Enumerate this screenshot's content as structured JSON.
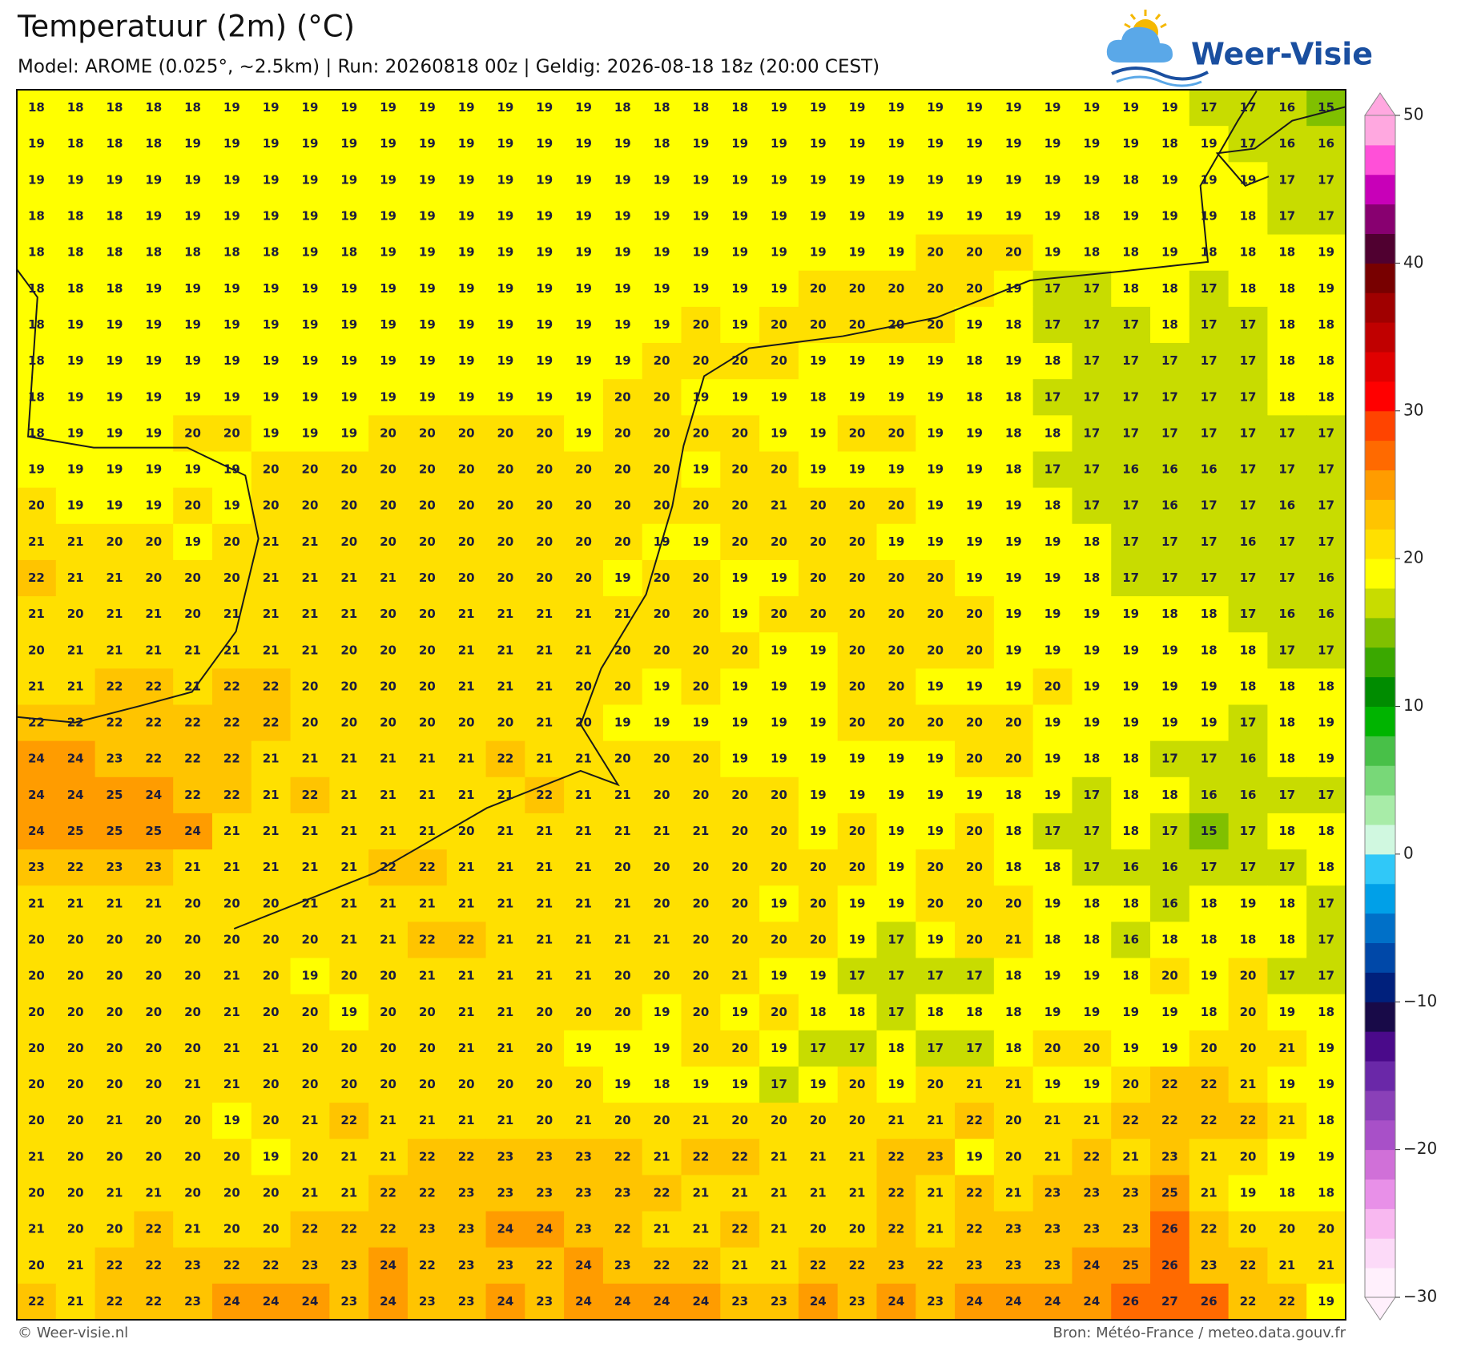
{
  "header": {
    "title": "Temperatuur (2m) (°C)",
    "subtitle": "Model: AROME (0.025°, ~2.5km)  |  Run: 20260818 00z  |  Geldig: 2026-08-18 18z (20:00 CEST)",
    "logo": "Weer-Visie"
  },
  "map": {
    "rows": [
      [
        18,
        18,
        18,
        18,
        18,
        19,
        19,
        19,
        19,
        19,
        19,
        19,
        19,
        19,
        19,
        18,
        18,
        18,
        18,
        19,
        19,
        19,
        19,
        19,
        19,
        19,
        19,
        19,
        19,
        19,
        17,
        17,
        16,
        15
      ],
      [
        19,
        18,
        18,
        18,
        19,
        19,
        19,
        19,
        19,
        19,
        19,
        19,
        19,
        19,
        19,
        19,
        18,
        19,
        19,
        19,
        19,
        19,
        19,
        19,
        19,
        19,
        19,
        19,
        19,
        18,
        19,
        17,
        16,
        16
      ],
      [
        19,
        19,
        19,
        19,
        19,
        19,
        19,
        19,
        19,
        19,
        19,
        19,
        19,
        19,
        19,
        19,
        19,
        19,
        19,
        19,
        19,
        19,
        19,
        19,
        19,
        19,
        19,
        19,
        18,
        19,
        19,
        19,
        17,
        17
      ],
      [
        18,
        18,
        18,
        19,
        19,
        19,
        19,
        19,
        19,
        19,
        19,
        19,
        19,
        19,
        19,
        19,
        19,
        19,
        19,
        19,
        19,
        19,
        19,
        19,
        19,
        19,
        19,
        18,
        19,
        19,
        19,
        18,
        17,
        17
      ],
      [
        18,
        18,
        18,
        18,
        18,
        18,
        18,
        19,
        18,
        19,
        19,
        19,
        19,
        19,
        19,
        19,
        19,
        19,
        19,
        19,
        19,
        19,
        19,
        20,
        20,
        20,
        19,
        18,
        18,
        19,
        18,
        18,
        18,
        19
      ],
      [
        18,
        18,
        18,
        19,
        19,
        19,
        19,
        19,
        19,
        19,
        19,
        19,
        19,
        19,
        19,
        19,
        19,
        19,
        19,
        19,
        20,
        20,
        20,
        20,
        20,
        19,
        17,
        17,
        18,
        18,
        17,
        18,
        18,
        19
      ],
      [
        18,
        19,
        19,
        19,
        19,
        19,
        19,
        19,
        19,
        19,
        19,
        19,
        19,
        19,
        19,
        19,
        19,
        20,
        19,
        20,
        20,
        20,
        20,
        20,
        19,
        18,
        17,
        17,
        17,
        18,
        17,
        17,
        18,
        18
      ],
      [
        18,
        19,
        19,
        19,
        19,
        19,
        19,
        19,
        19,
        19,
        19,
        19,
        19,
        19,
        19,
        19,
        20,
        20,
        20,
        20,
        19,
        19,
        19,
        19,
        18,
        19,
        18,
        17,
        17,
        17,
        17,
        17,
        18,
        18
      ],
      [
        18,
        19,
        19,
        19,
        19,
        19,
        19,
        19,
        19,
        19,
        19,
        19,
        19,
        19,
        19,
        20,
        20,
        19,
        19,
        19,
        18,
        19,
        19,
        19,
        18,
        18,
        17,
        17,
        17,
        17,
        17,
        17,
        18,
        18
      ],
      [
        18,
        19,
        19,
        19,
        20,
        20,
        19,
        19,
        19,
        20,
        20,
        20,
        20,
        20,
        19,
        20,
        20,
        20,
        20,
        19,
        19,
        20,
        20,
        19,
        19,
        18,
        18,
        17,
        17,
        17,
        17,
        17,
        17,
        17
      ],
      [
        19,
        19,
        19,
        19,
        19,
        19,
        20,
        20,
        20,
        20,
        20,
        20,
        20,
        20,
        20,
        20,
        20,
        19,
        20,
        20,
        19,
        19,
        19,
        19,
        19,
        18,
        17,
        17,
        16,
        16,
        16,
        17,
        17,
        17
      ],
      [
        20,
        19,
        19,
        19,
        20,
        19,
        20,
        20,
        20,
        20,
        20,
        20,
        20,
        20,
        20,
        20,
        20,
        20,
        20,
        21,
        20,
        20,
        20,
        19,
        19,
        19,
        18,
        17,
        17,
        16,
        17,
        17,
        16,
        17
      ],
      [
        21,
        21,
        20,
        20,
        19,
        20,
        21,
        21,
        20,
        20,
        20,
        20,
        20,
        20,
        20,
        20,
        19,
        19,
        20,
        20,
        20,
        20,
        19,
        19,
        19,
        19,
        19,
        18,
        17,
        17,
        17,
        16,
        17,
        17
      ],
      [
        22,
        21,
        21,
        20,
        20,
        20,
        21,
        21,
        21,
        21,
        20,
        20,
        20,
        20,
        20,
        19,
        20,
        20,
        19,
        19,
        20,
        20,
        20,
        20,
        19,
        19,
        19,
        18,
        17,
        17,
        17,
        17,
        17,
        16
      ],
      [
        21,
        20,
        21,
        21,
        20,
        21,
        21,
        21,
        21,
        20,
        20,
        21,
        21,
        21,
        21,
        21,
        20,
        20,
        19,
        20,
        20,
        20,
        20,
        20,
        20,
        19,
        19,
        19,
        19,
        18,
        18,
        17,
        16,
        16
      ],
      [
        20,
        21,
        21,
        21,
        21,
        21,
        21,
        21,
        20,
        20,
        20,
        21,
        21,
        21,
        21,
        20,
        20,
        20,
        20,
        19,
        19,
        20,
        20,
        20,
        20,
        19,
        19,
        19,
        19,
        19,
        18,
        18,
        17,
        17
      ],
      [
        21,
        21,
        22,
        22,
        21,
        22,
        22,
        20,
        20,
        20,
        20,
        21,
        21,
        21,
        20,
        20,
        19,
        20,
        19,
        19,
        19,
        20,
        20,
        19,
        19,
        19,
        20,
        19,
        19,
        19,
        19,
        18,
        18,
        18
      ],
      [
        22,
        22,
        22,
        22,
        22,
        22,
        22,
        20,
        20,
        20,
        20,
        20,
        20,
        21,
        20,
        19,
        19,
        19,
        19,
        19,
        19,
        20,
        20,
        20,
        20,
        20,
        19,
        19,
        19,
        19,
        19,
        17,
        18,
        19
      ],
      [
        24,
        24,
        23,
        22,
        22,
        22,
        21,
        21,
        21,
        21,
        21,
        21,
        22,
        21,
        21,
        20,
        20,
        20,
        19,
        19,
        19,
        19,
        19,
        19,
        20,
        20,
        19,
        18,
        18,
        17,
        17,
        16,
        18,
        19
      ],
      [
        24,
        24,
        25,
        24,
        22,
        22,
        21,
        22,
        21,
        21,
        21,
        21,
        21,
        22,
        21,
        21,
        20,
        20,
        20,
        20,
        19,
        19,
        19,
        19,
        19,
        18,
        19,
        17,
        18,
        18,
        16,
        16,
        17,
        17
      ],
      [
        24,
        25,
        25,
        25,
        24,
        21,
        21,
        21,
        21,
        21,
        21,
        20,
        21,
        21,
        21,
        21,
        21,
        21,
        20,
        20,
        19,
        20,
        19,
        19,
        20,
        18,
        17,
        17,
        18,
        17,
        15,
        17,
        18,
        18
      ],
      [
        23,
        22,
        23,
        23,
        21,
        21,
        21,
        21,
        21,
        22,
        22,
        21,
        21,
        21,
        21,
        20,
        20,
        20,
        20,
        20,
        20,
        20,
        19,
        20,
        20,
        18,
        18,
        17,
        16,
        16,
        17,
        17,
        17,
        18
      ],
      [
        21,
        21,
        21,
        21,
        20,
        20,
        20,
        21,
        21,
        21,
        21,
        21,
        21,
        21,
        21,
        21,
        20,
        20,
        20,
        19,
        20,
        19,
        19,
        20,
        20,
        20,
        19,
        18,
        18,
        16,
        18,
        19,
        18,
        17
      ],
      [
        20,
        20,
        20,
        20,
        20,
        20,
        20,
        20,
        21,
        21,
        22,
        22,
        21,
        21,
        21,
        21,
        21,
        20,
        20,
        20,
        20,
        19,
        17,
        19,
        20,
        21,
        18,
        18,
        16,
        18,
        18,
        18,
        18,
        17
      ],
      [
        20,
        20,
        20,
        20,
        20,
        21,
        20,
        19,
        20,
        20,
        21,
        21,
        21,
        21,
        21,
        20,
        20,
        20,
        21,
        19,
        19,
        17,
        17,
        17,
        17,
        18,
        19,
        19,
        18,
        20,
        19,
        20,
        17,
        17
      ],
      [
        20,
        20,
        20,
        20,
        20,
        21,
        20,
        20,
        19,
        20,
        20,
        21,
        21,
        20,
        20,
        20,
        19,
        20,
        19,
        20,
        18,
        18,
        17,
        18,
        18,
        18,
        19,
        19,
        19,
        19,
        18,
        20,
        19,
        18
      ],
      [
        20,
        20,
        20,
        20,
        20,
        21,
        21,
        20,
        20,
        20,
        20,
        21,
        21,
        20,
        19,
        19,
        19,
        20,
        20,
        19,
        17,
        17,
        18,
        17,
        17,
        18,
        20,
        20,
        19,
        19,
        20,
        20,
        21,
        19
      ],
      [
        20,
        20,
        20,
        20,
        21,
        21,
        20,
        20,
        20,
        20,
        20,
        20,
        20,
        20,
        20,
        19,
        18,
        19,
        19,
        17,
        19,
        20,
        19,
        20,
        21,
        21,
        19,
        19,
        20,
        22,
        22,
        21,
        19,
        19
      ],
      [
        20,
        20,
        21,
        20,
        20,
        19,
        20,
        21,
        22,
        21,
        21,
        21,
        21,
        20,
        21,
        20,
        20,
        21,
        20,
        20,
        20,
        20,
        21,
        21,
        22,
        20,
        21,
        21,
        22,
        22,
        22,
        22,
        21,
        18
      ],
      [
        21,
        20,
        20,
        20,
        20,
        20,
        19,
        20,
        21,
        21,
        22,
        22,
        23,
        23,
        23,
        22,
        21,
        22,
        22,
        21,
        21,
        21,
        22,
        23,
        19,
        20,
        21,
        22,
        21,
        23,
        21,
        20,
        19,
        19
      ],
      [
        20,
        20,
        21,
        21,
        20,
        20,
        20,
        21,
        21,
        22,
        22,
        23,
        23,
        23,
        23,
        23,
        22,
        21,
        21,
        21,
        21,
        21,
        22,
        21,
        22,
        21,
        23,
        23,
        23,
        25,
        21,
        19,
        18,
        18
      ],
      [
        21,
        20,
        20,
        22,
        21,
        20,
        20,
        22,
        22,
        22,
        23,
        23,
        24,
        24,
        23,
        22,
        21,
        21,
        22,
        21,
        20,
        20,
        22,
        21,
        22,
        23,
        23,
        23,
        23,
        26,
        22,
        20,
        20,
        20
      ],
      [
        20,
        21,
        22,
        22,
        23,
        22,
        22,
        23,
        23,
        24,
        22,
        23,
        23,
        22,
        24,
        23,
        22,
        22,
        21,
        21,
        22,
        22,
        23,
        22,
        23,
        23,
        23,
        24,
        25,
        26,
        23,
        22,
        21,
        21
      ],
      [
        22,
        21,
        22,
        22,
        23,
        24,
        24,
        24,
        23,
        24,
        23,
        23,
        24,
        23,
        24,
        24,
        24,
        24,
        23,
        23,
        24,
        23,
        24,
        23,
        24,
        24,
        24,
        24,
        26,
        27,
        26,
        22,
        22,
        19
      ]
    ],
    "color_scale": {
      "lim": [
        -30,
        50
      ],
      "ticks": [
        {
          "value": -30,
          "label": "−30"
        },
        {
          "value": -20,
          "label": "−20"
        },
        {
          "value": -10,
          "label": "−10"
        },
        0,
        10,
        20,
        30,
        40,
        50
      ],
      "colors": [
        "#fff0fc",
        "#fcdaf8",
        "#f8b8f0",
        "#e890e8",
        "#d070d8",
        "#a850c8",
        "#8a40b8",
        "#6a28a8",
        "#4a0a8a",
        "#180a48",
        "#00207c",
        "#0048a8",
        "#0070c8",
        "#00a0e8",
        "#30c8f8",
        "#d0f8e0",
        "#a8eca8",
        "#78d878",
        "#48c048",
        "#00b400",
        "#008c00",
        "#3aa800",
        "#80c000",
        "#c8dc00",
        "#ffff00",
        "#ffe000",
        "#ffc400",
        "#ff9c00",
        "#ff6a00",
        "#ff4400",
        "#ff0000",
        "#e00000",
        "#c00000",
        "#a00000",
        "#780000",
        "#500030",
        "#880070",
        "#c800b8",
        "#ff50d8",
        "#ffa8e0"
      ]
    }
  },
  "footer": {
    "copyright": "© Weer-visie.nl",
    "source": "Bron: Météo-France / meteo.data.gouv.fr"
  }
}
